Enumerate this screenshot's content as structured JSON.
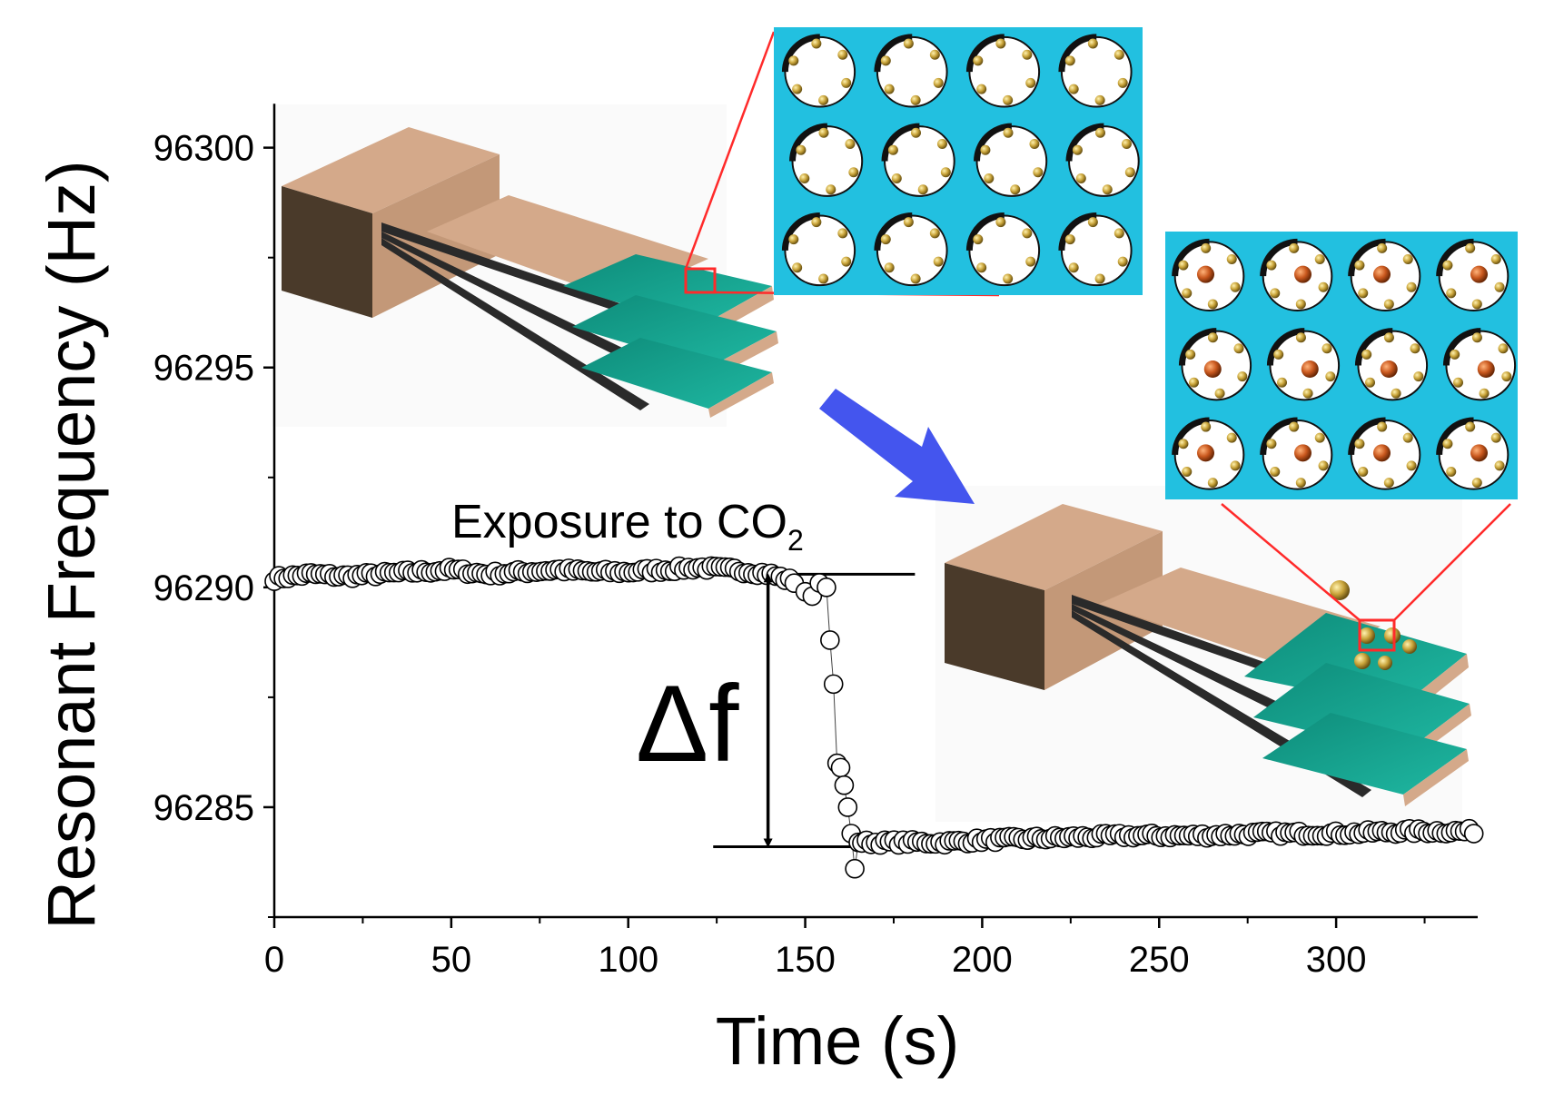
{
  "chart_data": {
    "type": "scatter",
    "xlabel": "Time (s)",
    "ylabel": "Resonant Frequency (Hz)",
    "xlim": [
      0,
      340
    ],
    "ylim": [
      96282.5,
      96301.5
    ],
    "x_ticks": [
      0,
      50,
      100,
      150,
      200,
      250,
      300
    ],
    "y_ticks": [
      96285,
      96290,
      96295,
      96300
    ],
    "x_tick_labels": [
      "0",
      "50",
      "100",
      "150",
      "200",
      "250",
      "300"
    ],
    "y_tick_labels": [
      "96285",
      "96290",
      "96295",
      "96300"
    ],
    "grid": false,
    "legend": "none",
    "marker": "open-circle",
    "series": [
      {
        "points": [
          [
            0,
            96290.2
          ],
          [
            5,
            96290.25
          ],
          [
            10,
            96290.3
          ],
          [
            20,
            96290.25
          ],
          [
            30,
            96290.3
          ],
          [
            40,
            96290.35
          ],
          [
            50,
            96290.4
          ],
          [
            60,
            96290.3
          ],
          [
            70,
            96290.35
          ],
          [
            80,
            96290.4
          ],
          [
            90,
            96290.35
          ],
          [
            100,
            96290.35
          ],
          [
            110,
            96290.4
          ],
          [
            120,
            96290.45
          ],
          [
            130,
            96290.4
          ],
          [
            140,
            96290.3
          ],
          [
            148,
            96290.1
          ],
          [
            150,
            96289.9
          ],
          [
            152,
            96289.8
          ],
          [
            154,
            96290.1
          ],
          [
            156,
            96290.0
          ],
          [
            157,
            96288.8
          ],
          [
            158,
            96287.8
          ],
          [
            159,
            96286.0
          ],
          [
            160,
            96285.9
          ],
          [
            161,
            96285.5
          ],
          [
            162,
            96285.0
          ],
          [
            163,
            96284.4
          ],
          [
            164,
            96283.6
          ],
          [
            165,
            96284.2
          ],
          [
            175,
            96284.2
          ],
          [
            190,
            96284.2
          ],
          [
            200,
            96284.25
          ],
          [
            220,
            96284.3
          ],
          [
            240,
            96284.35
          ],
          [
            260,
            96284.35
          ],
          [
            280,
            96284.4
          ],
          [
            300,
            96284.4
          ],
          [
            320,
            96284.45
          ],
          [
            340,
            96284.45
          ]
        ]
      }
    ],
    "annotations": {
      "exposure_text": "Exposure to CO",
      "exposure_subscript": "2",
      "delta_label": "Δf",
      "upper_reference": 96290.3,
      "lower_reference": 96284.1
    }
  },
  "colors": {
    "framework": "#22c0e0",
    "framework_edge": "#111111",
    "gold_atom": "#c9a43a",
    "co2_atom": "#c9581e",
    "cantilever_top": "#d4a98a",
    "cantilever_side": "#4a3a2a",
    "film_green": "#16a090",
    "zoom_line": "#ff2a2a",
    "arrow_blue": "#4455ee"
  },
  "icons": [
    "cantilever-before-icon",
    "cantilever-after-icon",
    "mof-pore-lattice-icon",
    "mof-pore-lattice-co2-icon"
  ]
}
